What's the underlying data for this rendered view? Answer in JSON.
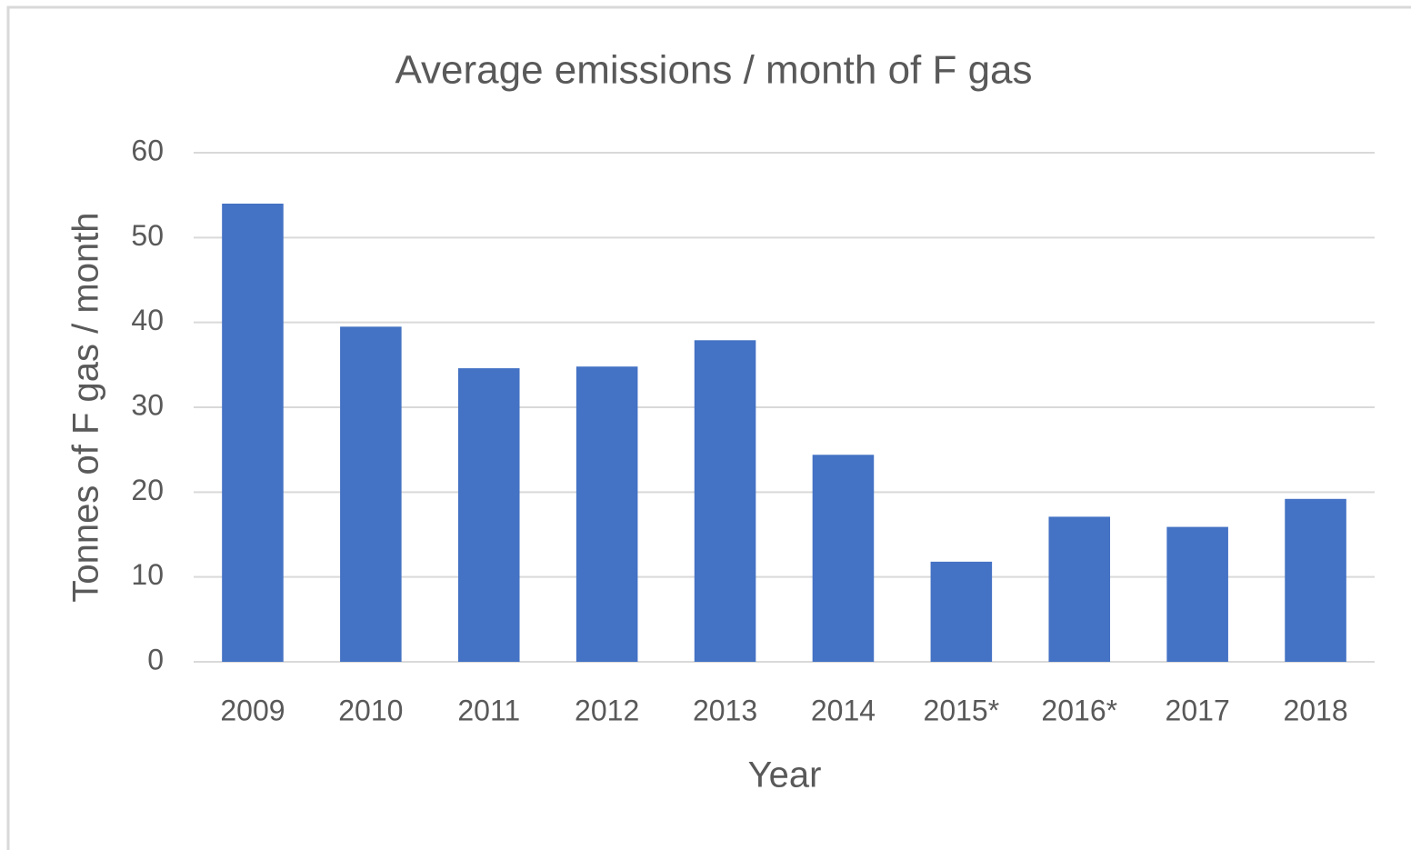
{
  "chart_data": {
    "type": "bar",
    "title": "Average emissions / month of F gas",
    "x_label": "Year",
    "y_label": "Tonnes of F gas / month",
    "categories": [
      "2009",
      "2010",
      "2011",
      "2012",
      "2013",
      "2014",
      "2015*",
      "2016*",
      "2017",
      "2018"
    ],
    "values": [
      54,
      39.5,
      34.6,
      34.8,
      37.9,
      24.4,
      11.8,
      17.1,
      15.9,
      19.2
    ],
    "color": "#4472c4",
    "ylim": [
      0,
      60
    ],
    "yticks": [
      0,
      10,
      20,
      30,
      40,
      50,
      60
    ],
    "grid": true
  }
}
